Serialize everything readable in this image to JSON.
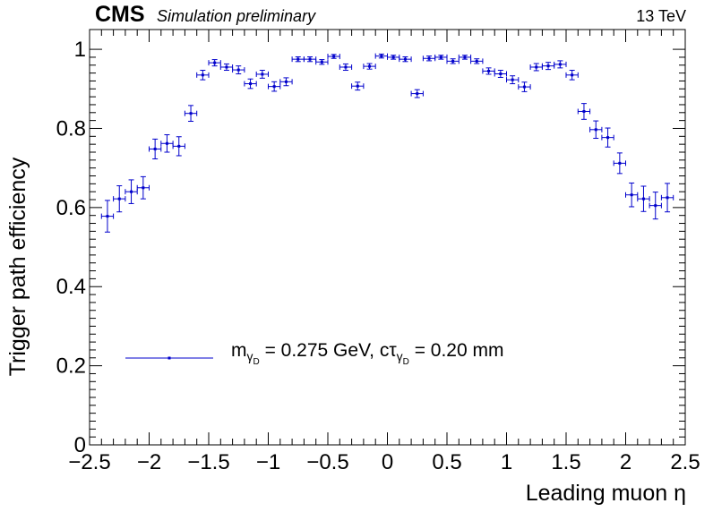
{
  "header": {
    "experiment": "CMS",
    "status": "Simulation preliminary",
    "energy": "13 TeV"
  },
  "colors": {
    "series": "#0000cc",
    "axis": "#000000"
  },
  "legend": {
    "m_symbol": "m",
    "m_sub": "γ",
    "m_subsub": "D",
    "m_value": " = 0.275 GeV, cτ",
    "ct_sub": "γ",
    "ct_subsub": "D",
    "ct_value": " = 0.20 mm"
  },
  "chart_data": {
    "type": "scatter",
    "title": "",
    "xlabel": "Leading muon η",
    "ylabel": "Trigger path efficiency",
    "xlim": [
      -2.5,
      2.5
    ],
    "ylim": [
      0,
      1.05
    ],
    "x_ticks": [
      "−2.5",
      "−2",
      "−1.5",
      "−1",
      "−0.5",
      "0",
      "0.5",
      "1",
      "1.5",
      "2",
      "2.5"
    ],
    "y_ticks": [
      "0",
      "0.2",
      "0.4",
      "0.6",
      "0.8",
      "1"
    ],
    "grid": false,
    "legend_position": "bottom-left",
    "series": [
      {
        "name": "m_γD = 0.275 GeV, cτ_γD = 0.20 mm",
        "x": [
          -2.35,
          -2.25,
          -2.15,
          -2.05,
          -1.95,
          -1.85,
          -1.75,
          -1.65,
          -1.55,
          -1.45,
          -1.35,
          -1.25,
          -1.15,
          -1.05,
          -0.95,
          -0.85,
          -0.75,
          -0.65,
          -0.55,
          -0.45,
          -0.35,
          -0.25,
          -0.15,
          -0.05,
          0.05,
          0.15,
          0.25,
          0.35,
          0.45,
          0.55,
          0.65,
          0.75,
          0.85,
          0.95,
          1.05,
          1.15,
          1.25,
          1.35,
          1.45,
          1.55,
          1.65,
          1.75,
          1.85,
          1.95,
          2.05,
          2.15,
          2.25,
          2.35
        ],
        "y": [
          0.578,
          0.622,
          0.64,
          0.65,
          0.748,
          0.762,
          0.755,
          0.838,
          0.935,
          0.966,
          0.955,
          0.948,
          0.913,
          0.937,
          0.906,
          0.918,
          0.975,
          0.975,
          0.968,
          0.982,
          0.955,
          0.907,
          0.957,
          0.983,
          0.98,
          0.975,
          0.888,
          0.977,
          0.98,
          0.97,
          0.98,
          0.97,
          0.945,
          0.938,
          0.923,
          0.905,
          0.955,
          0.958,
          0.962,
          0.935,
          0.843,
          0.797,
          0.777,
          0.712,
          0.632,
          0.622,
          0.605,
          0.625
        ],
        "yerr": [
          0.04,
          0.033,
          0.03,
          0.028,
          0.025,
          0.022,
          0.024,
          0.02,
          0.012,
          0.008,
          0.008,
          0.01,
          0.012,
          0.01,
          0.012,
          0.01,
          0.006,
          0.006,
          0.006,
          0.005,
          0.008,
          0.01,
          0.007,
          0.005,
          0.005,
          0.006,
          0.01,
          0.006,
          0.005,
          0.006,
          0.005,
          0.006,
          0.008,
          0.009,
          0.01,
          0.012,
          0.009,
          0.009,
          0.009,
          0.012,
          0.02,
          0.022,
          0.024,
          0.026,
          0.03,
          0.032,
          0.034,
          0.036
        ],
        "xerr": 0.05
      }
    ]
  }
}
